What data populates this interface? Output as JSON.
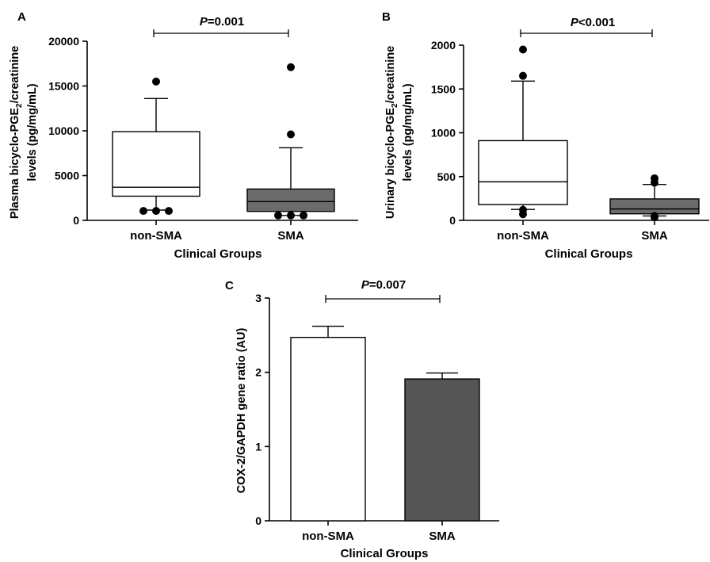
{
  "chart_data": [
    {
      "panel": "A",
      "type": "box",
      "ylabel_line1": "Plasma bicyclo-PGE",
      "ylabel_sub": "2",
      "ylabel_rest": "/creatinine",
      "ylabel_line2": "levels (pg/mg/mL)",
      "xlabel": "Clinical Groups",
      "ylim": [
        0,
        20000
      ],
      "yticks": [
        0,
        5000,
        10000,
        15000,
        20000
      ],
      "ytick_labels": [
        "0",
        "5000",
        "10000",
        "15000",
        "20000"
      ],
      "categories": [
        "non-SMA",
        "SMA"
      ],
      "boxes": [
        {
          "name": "non-SMA",
          "fill": "#ffffff",
          "whisker_low": 1150,
          "q1": 2700,
          "median": 3700,
          "q3": 9900,
          "whisker_high": 13600,
          "outliers": [
            15500,
            1050,
            1050,
            1050
          ]
        },
        {
          "name": "SMA",
          "fill": "#6b6b6b",
          "whisker_low": 550,
          "q1": 1000,
          "median": 2100,
          "q3": 3500,
          "whisker_high": 8100,
          "outliers": [
            17100,
            9600,
            550,
            550,
            550
          ]
        }
      ],
      "annotation": {
        "italic": "P",
        "text": "=0.001"
      }
    },
    {
      "panel": "B",
      "type": "box",
      "ylabel_line1": "Urinary bicyclo-PGE",
      "ylabel_sub": "2",
      "ylabel_rest": "/creatinine",
      "ylabel_line2": "levels (pg/mg/mL)",
      "xlabel": "Clinical Groups",
      "ylim": [
        0,
        2000
      ],
      "yticks": [
        0,
        500,
        1000,
        1500,
        2000
      ],
      "ytick_labels": [
        "0",
        "500",
        "1000",
        "1500",
        "2000"
      ],
      "categories": [
        "non-SMA",
        "SMA"
      ],
      "boxes": [
        {
          "name": "non-SMA",
          "fill": "#ffffff",
          "whisker_low": 125,
          "q1": 180,
          "median": 440,
          "q3": 910,
          "whisker_high": 1590,
          "outliers": [
            1950,
            1650,
            120,
            70
          ]
        },
        {
          "name": "SMA",
          "fill": "#6b6b6b",
          "whisker_low": 50,
          "q1": 75,
          "median": 130,
          "q3": 245,
          "whisker_high": 410,
          "outliers": [
            480,
            430,
            50,
            35
          ]
        }
      ],
      "annotation": {
        "italic": "P",
        "text": "<0.001"
      }
    },
    {
      "panel": "C",
      "type": "bar",
      "ylabel": "COX-2/GAPDH gene ratio (AU)",
      "xlabel": "Clinical Groups",
      "ylim": [
        0,
        3
      ],
      "yticks": [
        0,
        1,
        2,
        3
      ],
      "ytick_labels": [
        "0",
        "1",
        "2",
        "3"
      ],
      "categories": [
        "non-SMA",
        "SMA"
      ],
      "values": [
        2.47,
        1.91
      ],
      "errors": [
        0.15,
        0.08
      ],
      "fills": [
        "#ffffff",
        "#555555"
      ],
      "annotation": {
        "italic": "P",
        "text": "=0.007"
      }
    }
  ]
}
